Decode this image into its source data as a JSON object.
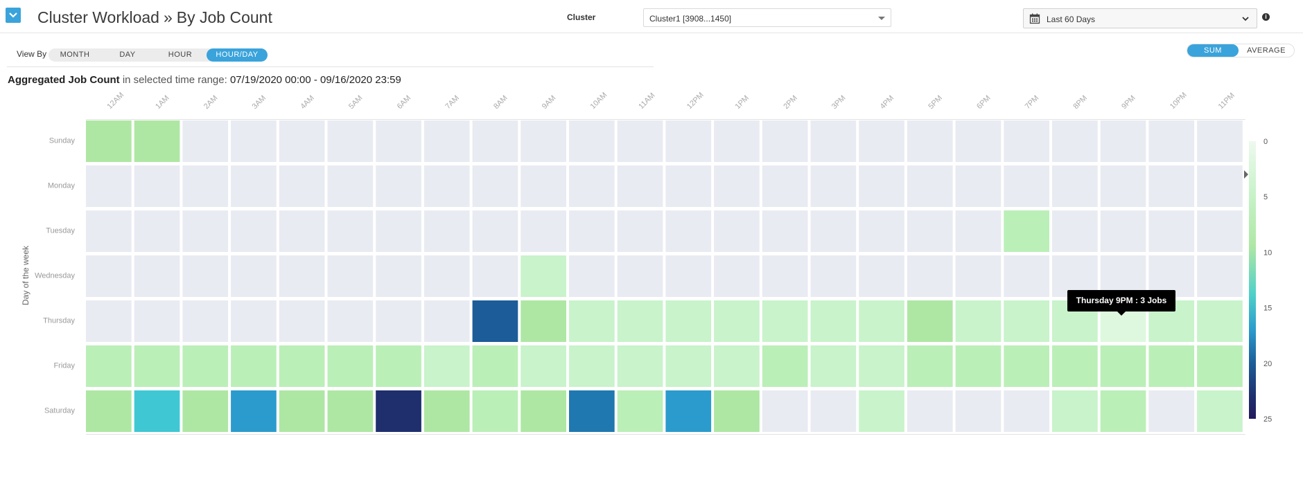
{
  "header": {
    "title": "Cluster Workload",
    "title_sep": "»",
    "subtitle": "By Job Count",
    "cluster_label": "Cluster",
    "cluster_value": "Cluster1 [3908...1450]",
    "date_range": "Last 60 Days"
  },
  "view_by": {
    "label": "View By",
    "options": [
      "MONTH",
      "DAY",
      "HOUR",
      "HOUR/DAY"
    ],
    "selected": "HOUR/DAY"
  },
  "aggregate": {
    "options": [
      "SUM",
      "AVERAGE"
    ],
    "selected": "SUM"
  },
  "summary": {
    "bold_label": "Aggregated Job Count",
    "text": "in selected time range:",
    "range": "07/19/2020 00:00 - 09/16/2020 23:59"
  },
  "tooltip": "Thursday 9PM : 3 Jobs",
  "colors": {
    "accent": "#3aa3db",
    "empty_cell": "#e9ebf2",
    "scale": [
      "#eef9ee",
      "#c9f3cb",
      "#aee7a4",
      "#3fc8d4",
      "#2b9bcd",
      "#1c5d99",
      "#1f2f6e",
      "#231a5c"
    ]
  },
  "chart_data": {
    "type": "heatmap",
    "xlabel": "",
    "ylabel": "Day of the week",
    "x_categories": [
      "12AM",
      "1AM",
      "2AM",
      "3AM",
      "4AM",
      "5AM",
      "6AM",
      "7AM",
      "8AM",
      "9AM",
      "10AM",
      "11AM",
      "12PM",
      "1PM",
      "2PM",
      "3PM",
      "4PM",
      "5PM",
      "6PM",
      "7PM",
      "8PM",
      "9PM",
      "10PM",
      "11PM"
    ],
    "y_categories": [
      "Sunday",
      "Monday",
      "Tuesday",
      "Wednesday",
      "Thursday",
      "Friday",
      "Saturday"
    ],
    "values": [
      [
        7,
        7,
        0,
        0,
        0,
        0,
        0,
        0,
        0,
        0,
        0,
        0,
        0,
        0,
        0,
        0,
        0,
        0,
        0,
        0,
        0,
        0,
        0,
        0
      ],
      [
        0,
        0,
        0,
        0,
        0,
        0,
        0,
        0,
        0,
        0,
        0,
        0,
        0,
        0,
        0,
        0,
        0,
        0,
        0,
        0,
        0,
        0,
        0,
        0
      ],
      [
        0,
        0,
        0,
        0,
        0,
        0,
        0,
        0,
        0,
        0,
        0,
        0,
        0,
        0,
        0,
        0,
        0,
        0,
        0,
        6,
        0,
        0,
        0,
        0
      ],
      [
        0,
        0,
        0,
        0,
        0,
        0,
        0,
        0,
        0,
        4,
        0,
        0,
        0,
        0,
        0,
        0,
        0,
        0,
        0,
        0,
        0,
        0,
        0,
        0
      ],
      [
        0,
        0,
        0,
        0,
        0,
        0,
        0,
        0,
        20,
        7,
        4,
        4,
        4,
        4,
        4,
        3,
        4,
        8,
        4,
        4,
        4,
        3,
        4,
        4
      ],
      [
        5,
        5,
        5,
        5,
        5,
        5,
        5,
        4,
        5,
        4,
        4,
        4,
        4,
        4,
        5,
        4,
        4,
        5,
        5,
        5,
        5,
        5,
        5,
        5
      ],
      [
        7,
        14,
        7,
        17,
        7,
        7,
        23,
        7,
        6,
        7,
        18,
        6,
        17,
        7,
        0,
        0,
        4,
        0,
        0,
        0,
        4,
        5,
        0,
        4
      ]
    ],
    "color_scale": {
      "min": 0,
      "max": 25,
      "ticks": [
        0,
        5,
        10,
        15,
        20,
        25
      ]
    }
  }
}
